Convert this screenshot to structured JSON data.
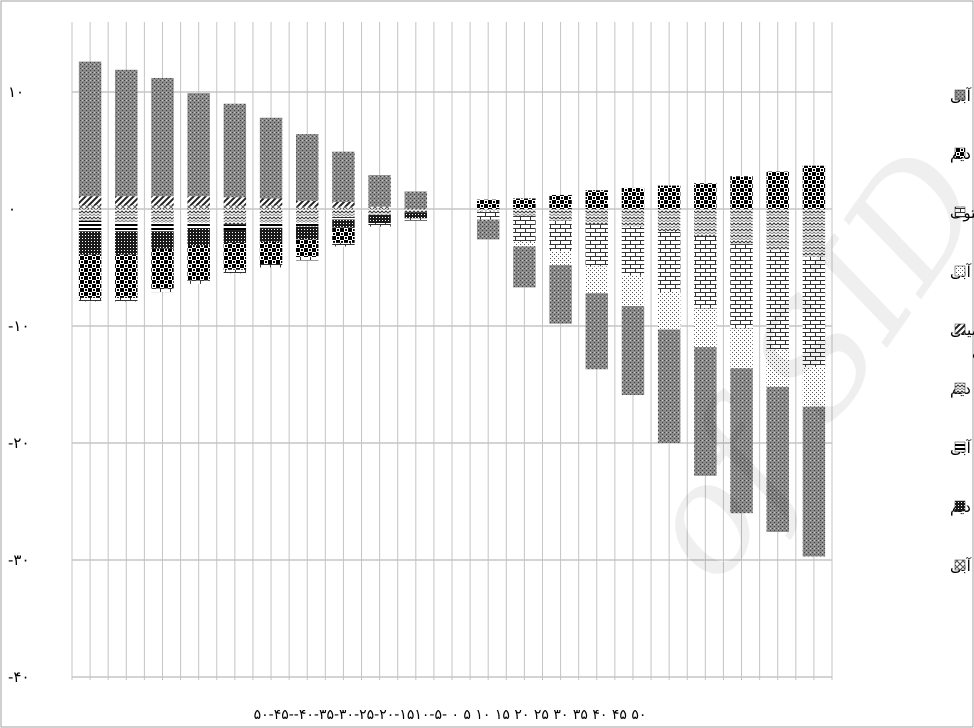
{
  "chart_data": {
    "type": "bar",
    "stacked": true,
    "diverging": true,
    "grid": true,
    "legend_position": "right",
    "ylim": [
      -40,
      15
    ],
    "yticks": [
      "۱۰",
      "۰",
      "-۱۰",
      "-۲۰",
      "-۳۰",
      "-۴۰"
    ],
    "ytick_values": [
      10,
      0,
      -10,
      -20,
      -30,
      -40
    ],
    "categories": [
      "-۵۰",
      "-۴۵",
      "-۴۰",
      "-۳۵",
      "-۳۰",
      "-۲۵",
      "-۲۰",
      "-۱۵",
      "-۱۰",
      "-۵",
      "۰",
      "۵",
      "۱۰",
      "۱۵",
      "۲۰",
      "۲۵",
      "۳۰",
      "۳۵",
      "۴۰",
      "۴۵",
      "۵۰"
    ],
    "x_axis_text": "۵۰-۴۵--۴۰-۳۵-۳۰-۲۵-۲۰-۱۵۱۰-۵- ۰ ۵ ۱۰ ۱۵ ۲۰ ۲۵ ۳۰ ۳۵ ۴۰ ۴۵ ۵۰",
    "series": [
      {
        "name": "پیاز آبی",
        "pattern": "stipple-dark",
        "values": [
          11.5,
          10.8,
          10.1,
          8.8,
          8.0,
          6.9,
          5.7,
          4.3,
          2.7,
          1.5,
          0,
          -1.7,
          -3.5,
          -5.0,
          -6.5,
          -7.6,
          -9.7,
          -11.0,
          -12.4,
          -12.4,
          -12.8
        ]
      },
      {
        "name": "سویا دیم",
        "pattern": "checker",
        "values": [
          -3.7,
          -3.7,
          -3.4,
          -3.0,
          -2.3,
          -1.9,
          -1.5,
          -1.3,
          0,
          0,
          0,
          0.8,
          0.9,
          1.2,
          1.6,
          1.8,
          2.0,
          2.2,
          2.8,
          3.2,
          3.7
        ]
      },
      {
        "name": "شلتوک",
        "pattern": "brick",
        "values": [
          -0.3,
          -0.3,
          -0.3,
          -0.3,
          -0.3,
          -0.3,
          -0.3,
          -0.3,
          -0.3,
          -0.2,
          0,
          -0.7,
          -2.2,
          -2.6,
          -3.6,
          -4.2,
          -5.2,
          -6.2,
          -7.2,
          -8.5,
          -9.4
        ]
      },
      {
        "name": "کلزا آبی",
        "pattern": "sparse-dots",
        "values": [
          0,
          0,
          0,
          0,
          0,
          0,
          0,
          0,
          0,
          0,
          0,
          0,
          -0.4,
          -1.2,
          -2.3,
          -2.6,
          -3.2,
          -3.3,
          -3.4,
          -3.2,
          -3.4
        ]
      },
      {
        "name": "سیب زمینی آبی",
        "pattern": "diagonal-stripes",
        "values": [
          0.8,
          0.8,
          0.8,
          0.8,
          0.7,
          0.6,
          0.5,
          0.4,
          0,
          0,
          0,
          0,
          0,
          0,
          0,
          0,
          0,
          0,
          0,
          0,
          0
        ]
      },
      {
        "name": "جو دیم",
        "pattern": "wave",
        "values": [
          -1.0,
          -1.1,
          -1.2,
          -1.2,
          -1.3,
          -1.2,
          -1.2,
          -0.7,
          -0.5,
          -0.3,
          0,
          -0.2,
          -0.6,
          -1.0,
          -1.3,
          -1.5,
          -1.9,
          -2.3,
          -3.0,
          -3.5,
          -4.1
        ]
      },
      {
        "name": "جو آبی",
        "pattern": "horizontal-lines",
        "values": [
          -0.9,
          -0.8,
          -0.7,
          -0.5,
          -0.5,
          -0.4,
          -0.3,
          -0.2,
          0,
          0,
          0,
          0,
          0,
          0,
          0,
          0,
          0,
          0,
          0,
          0,
          0
        ]
      },
      {
        "name": "گندم دیم",
        "pattern": "dense-dots",
        "values": [
          -2.0,
          -2.0,
          -1.5,
          -1.4,
          -1.1,
          -1.2,
          -1.1,
          -0.7,
          -0.7,
          -0.5,
          0,
          0,
          0,
          0,
          0,
          0,
          0,
          0,
          0,
          0,
          0
        ]
      },
      {
        "name": "گندم آبی",
        "pattern": "lattice",
        "values": [
          0.3,
          0.3,
          0.3,
          0.3,
          0.3,
          0.3,
          0.2,
          0.2,
          0.2,
          0,
          0,
          0,
          0,
          0,
          0,
          0,
          0,
          0,
          0,
          0,
          0
        ]
      }
    ],
    "stack_order_positive": [
      8,
      4,
      0,
      1
    ],
    "stack_order_negative": [
      5,
      6,
      7,
      1,
      2,
      3,
      0
    ]
  },
  "legend": {
    "items": [
      {
        "label": "پیاز آبی",
        "pattern": "stipple-dark"
      },
      {
        "label": "سویا دیم",
        "pattern": "checker"
      },
      {
        "label": "شلتوک",
        "pattern": "brick"
      },
      {
        "label": "کلزا آبی",
        "pattern": "sparse-dots"
      },
      {
        "label": "سیب زمینی",
        "label2": "آبی",
        "pattern": "diagonal-stripes"
      },
      {
        "label": "جو دیم",
        "pattern": "wave"
      },
      {
        "label": "جو آبی",
        "pattern": "horizontal-lines"
      },
      {
        "label": "گندم دیم",
        "pattern": "dense-dots"
      },
      {
        "label": "گندم آبی",
        "pattern": "lattice"
      }
    ]
  }
}
